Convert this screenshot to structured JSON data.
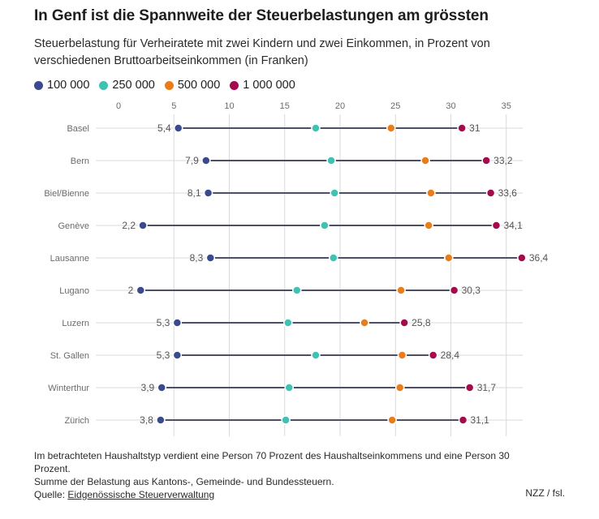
{
  "title": "In Genf ist die Spannweite der Steuerbelastungen am grössten",
  "subtitle": "Steuerbelastung für Verheiratete mit zwei Kindern und zwei Einkommen, in Prozent von verschiedenen Bruttoarbeitseinkommen (in Franken)",
  "colors": {
    "s100k": "#3a4a8c",
    "s250k": "#40c2b3",
    "s500k": "#ea7d1b",
    "s1m": "#a50a4c",
    "line": "#4c4f66",
    "grid": "#d9d9d9"
  },
  "chart_data": {
    "type": "dot-range",
    "title": "In Genf ist die Spannweite der Steuerbelastungen am grössten",
    "xlabel": "",
    "ylabel": "",
    "xlim": [
      0,
      36.5
    ],
    "xticks": [
      0,
      5,
      10,
      15,
      20,
      25,
      30,
      35
    ],
    "grid": true,
    "legend_position": "top-left",
    "series": [
      {
        "name": "100 000",
        "color_key": "s100k"
      },
      {
        "name": "250 000",
        "color_key": "s250k"
      },
      {
        "name": "500 000",
        "color_key": "s500k"
      },
      {
        "name": "1 000 000",
        "color_key": "s1m"
      }
    ],
    "categories": [
      "Basel",
      "Bern",
      "Biel/Bienne",
      "Genève",
      "Lausanne",
      "Lugano",
      "Luzern",
      "St. Gallen",
      "Winterthur",
      "Zürich"
    ],
    "values": [
      [
        5.4,
        17.8,
        24.6,
        31
      ],
      [
        7.9,
        19.2,
        27.7,
        33.2
      ],
      [
        8.1,
        19.5,
        28.2,
        33.6
      ],
      [
        2.2,
        18.6,
        28.0,
        34.1
      ],
      [
        8.3,
        19.4,
        29.8,
        36.4
      ],
      [
        2,
        16.1,
        25.5,
        30.3
      ],
      [
        5.3,
        15.3,
        22.2,
        25.8
      ],
      [
        5.3,
        17.8,
        25.6,
        28.4
      ],
      [
        3.9,
        15.4,
        25.4,
        31.7
      ],
      [
        3.8,
        15.1,
        24.7,
        31.1
      ]
    ],
    "min_labels": [
      "5,4",
      "7,9",
      "8,1",
      "2,2",
      "8,3",
      "2",
      "5,3",
      "5,3",
      "3,9",
      "3,8"
    ],
    "max_labels": [
      "31",
      "33,2",
      "33,6",
      "34,1",
      "36,4",
      "30,3",
      "25,8",
      "28,4",
      "31,7",
      "31,1"
    ]
  },
  "footer": {
    "note1": "Im betrachteten Haushaltstyp verdient eine Person 70 Prozent des Haushaltseinkommens und eine Person 30 Prozent.",
    "note2": "Summe der Belastung aus Kantons-, Gemeinde- und Bundessteuern.",
    "source_prefix": "Quelle: ",
    "source_link": "Eidgenössische Steuerverwaltung",
    "credit": "NZZ / fsl."
  }
}
